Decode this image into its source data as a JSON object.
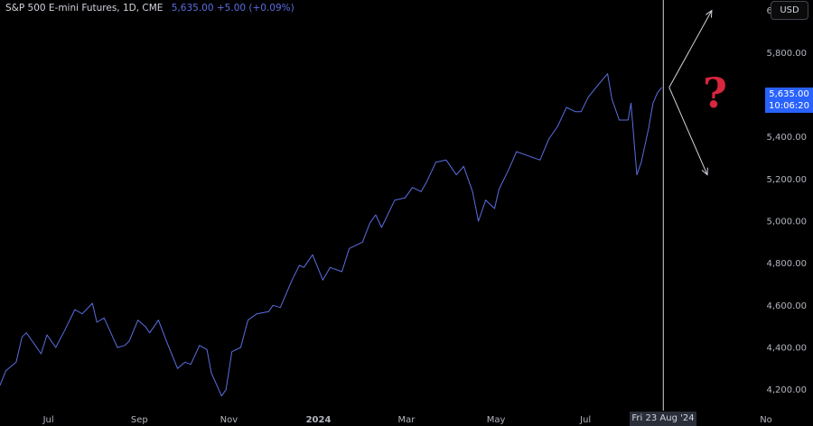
{
  "legend": {
    "title": "S&P 500 E-mini Futures, 1D, CME",
    "values": "5,635.00 +5.00 (+0.09%)"
  },
  "currency_button": "USD",
  "last_price": {
    "price": "5,635.00",
    "countdown": "10:06:20"
  },
  "crosshair_date": "Fri 23 Aug '24",
  "annotation_symbol": "?",
  "colors": {
    "line": "#5b6ee1",
    "price_tag": "#2962ff",
    "question_mark": "#d7263d",
    "arrows": "#d1d4dc"
  },
  "chart_data": {
    "type": "line",
    "ylim": [
      4100,
      6050
    ],
    "y_ticks": [
      {
        "value": 6000,
        "label": "6,000.00"
      },
      {
        "value": 5800,
        "label": "5,800.00"
      },
      {
        "value": 5600,
        "label": "5,600.00"
      },
      {
        "value": 5400,
        "label": "5,400.00"
      },
      {
        "value": 5200,
        "label": "5,200.00"
      },
      {
        "value": 5000,
        "label": "5,000.00"
      },
      {
        "value": 4800,
        "label": "4,800.00"
      },
      {
        "value": 4600,
        "label": "4,600.00"
      },
      {
        "value": 4400,
        "label": "4,400.00"
      },
      {
        "value": 4200,
        "label": "4,200.00"
      }
    ],
    "x_ticks": [
      {
        "date": "2023-07-01",
        "label": "Jul"
      },
      {
        "date": "2023-09-01",
        "label": "Sep"
      },
      {
        "date": "2023-11-01",
        "label": "Nov"
      },
      {
        "date": "2024-01-01",
        "label": "2024"
      },
      {
        "date": "2024-03-01",
        "label": "Mar"
      },
      {
        "date": "2024-05-01",
        "label": "May"
      },
      {
        "date": "2024-07-01",
        "label": "Jul"
      },
      {
        "date": "2024-11-01",
        "label": "No"
      }
    ],
    "x_range": [
      "2023-05-29",
      "2024-11-01"
    ],
    "crosshair": "2024-08-23",
    "series": [
      {
        "points": [
          [
            "2023-05-29",
            4220
          ],
          [
            "2023-06-02",
            4290
          ],
          [
            "2023-06-09",
            4330
          ],
          [
            "2023-06-13",
            4450
          ],
          [
            "2023-06-16",
            4470
          ],
          [
            "2023-06-20",
            4430
          ],
          [
            "2023-06-26",
            4370
          ],
          [
            "2023-06-30",
            4460
          ],
          [
            "2023-07-06",
            4400
          ],
          [
            "2023-07-12",
            4480
          ],
          [
            "2023-07-19",
            4580
          ],
          [
            "2023-07-24",
            4560
          ],
          [
            "2023-07-31",
            4610
          ],
          [
            "2023-08-03",
            4520
          ],
          [
            "2023-08-08",
            4540
          ],
          [
            "2023-08-17",
            4400
          ],
          [
            "2023-08-22",
            4410
          ],
          [
            "2023-08-25",
            4430
          ],
          [
            "2023-08-31",
            4530
          ],
          [
            "2023-09-05",
            4500
          ],
          [
            "2023-09-08",
            4470
          ],
          [
            "2023-09-14",
            4530
          ],
          [
            "2023-09-20",
            4420
          ],
          [
            "2023-09-27",
            4300
          ],
          [
            "2023-10-02",
            4330
          ],
          [
            "2023-10-06",
            4320
          ],
          [
            "2023-10-12",
            4410
          ],
          [
            "2023-10-17",
            4390
          ],
          [
            "2023-10-20",
            4280
          ],
          [
            "2023-10-27",
            4170
          ],
          [
            "2023-10-30",
            4200
          ],
          [
            "2023-11-03",
            4380
          ],
          [
            "2023-11-09",
            4400
          ],
          [
            "2023-11-14",
            4530
          ],
          [
            "2023-11-20",
            4560
          ],
          [
            "2023-11-28",
            4570
          ],
          [
            "2023-12-01",
            4600
          ],
          [
            "2023-12-06",
            4590
          ],
          [
            "2023-12-14",
            4720
          ],
          [
            "2023-12-19",
            4790
          ],
          [
            "2023-12-22",
            4780
          ],
          [
            "2023-12-28",
            4840
          ],
          [
            "2024-01-04",
            4720
          ],
          [
            "2024-01-09",
            4780
          ],
          [
            "2024-01-17",
            4760
          ],
          [
            "2024-01-22",
            4870
          ],
          [
            "2024-01-31",
            4900
          ],
          [
            "2024-02-05",
            4990
          ],
          [
            "2024-02-09",
            5030
          ],
          [
            "2024-02-13",
            4970
          ],
          [
            "2024-02-22",
            5100
          ],
          [
            "2024-02-29",
            5110
          ],
          [
            "2024-03-05",
            5160
          ],
          [
            "2024-03-11",
            5140
          ],
          [
            "2024-03-15",
            5190
          ],
          [
            "2024-03-21",
            5280
          ],
          [
            "2024-03-28",
            5290
          ],
          [
            "2024-04-04",
            5220
          ],
          [
            "2024-04-09",
            5260
          ],
          [
            "2024-04-15",
            5140
          ],
          [
            "2024-04-19",
            5000
          ],
          [
            "2024-04-24",
            5100
          ],
          [
            "2024-04-30",
            5060
          ],
          [
            "2024-05-03",
            5150
          ],
          [
            "2024-05-10",
            5250
          ],
          [
            "2024-05-15",
            5330
          ],
          [
            "2024-05-23",
            5310
          ],
          [
            "2024-05-31",
            5290
          ],
          [
            "2024-06-06",
            5390
          ],
          [
            "2024-06-12",
            5450
          ],
          [
            "2024-06-18",
            5540
          ],
          [
            "2024-06-24",
            5520
          ],
          [
            "2024-06-28",
            5520
          ],
          [
            "2024-07-03",
            5590
          ],
          [
            "2024-07-10",
            5650
          ],
          [
            "2024-07-16",
            5700
          ],
          [
            "2024-07-19",
            5580
          ],
          [
            "2024-07-24",
            5480
          ],
          [
            "2024-07-30",
            5480
          ],
          [
            "2024-08-01",
            5560
          ],
          [
            "2024-08-05",
            5220
          ],
          [
            "2024-08-08",
            5280
          ],
          [
            "2024-08-13",
            5440
          ],
          [
            "2024-08-16",
            5560
          ],
          [
            "2024-08-19",
            5610
          ],
          [
            "2024-08-22",
            5635
          ]
        ]
      }
    ],
    "projection_arrows": [
      {
        "from": [
          "2024-08-27",
          5635
        ],
        "to": [
          "2024-09-25",
          6000
        ]
      },
      {
        "from": [
          "2024-08-27",
          5635
        ],
        "to": [
          "2024-09-22",
          5220
        ]
      }
    ]
  }
}
